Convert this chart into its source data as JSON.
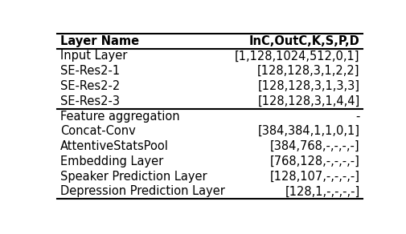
{
  "headers": [
    "Layer Name",
    "InC,OutC,K,S,P,D"
  ],
  "rows": [
    [
      "Input Layer",
      "[1,128,1024,512,0,1]"
    ],
    [
      "SE-Res2-1",
      "[128,128,3,1,2,2]"
    ],
    [
      "SE-Res2-2",
      "[128,128,3,1,3,3]"
    ],
    [
      "SE-Res2-3",
      "[128,128,3,1,4,4]"
    ],
    [
      "Feature aggregation",
      "-"
    ],
    [
      "Concat-Conv",
      "[384,384,1,1,0,1]"
    ],
    [
      "AttentiveStatsPool",
      "[384,768,-,-,-,-]"
    ],
    [
      "Embedding Layer",
      "[768,128,-,-,-,-]"
    ],
    [
      "Speaker Prediction Layer",
      "[128,107,-,-,-,-]"
    ],
    [
      "Depression Prediction Layer",
      "[128,1,-,-,-,-]"
    ]
  ],
  "fig_width": 5.06,
  "fig_height": 2.92,
  "dpi": 100,
  "background": "#ffffff",
  "header_fontsize": 10.5,
  "row_fontsize": 10.5
}
